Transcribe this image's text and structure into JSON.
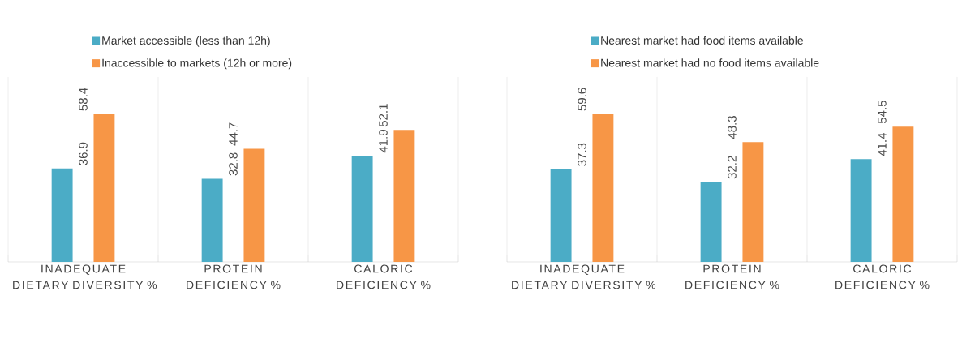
{
  "chart_data": [
    {
      "type": "bar",
      "categories": [
        "INADEQUATE DIETARY DIVERSITY %",
        "PROTEIN DEFICIENCY %",
        "CALORIC DEFICIENCY %"
      ],
      "series": [
        {
          "name": "Market accessible (less than 12h)",
          "color": "#4bacc6",
          "values": [
            36.9,
            32.8,
            41.9
          ]
        },
        {
          "name": "Inaccessible to markets (12h or more)",
          "color": "#f79646",
          "values": [
            58.4,
            44.7,
            52.1
          ]
        }
      ],
      "data_labels": true,
      "grid": "x",
      "legend": "top"
    },
    {
      "type": "bar",
      "categories": [
        "INADEQUATE DIETARY DIVERSITY %",
        "PROTEIN DEFICIENCY %",
        "CALORIC DEFICIENCY %"
      ],
      "series": [
        {
          "name": "Nearest market had food items available",
          "color": "#4bacc6",
          "values": [
            37.3,
            32.2,
            41.4
          ]
        },
        {
          "name": "Nearest market had no food items available",
          "color": "#f79646",
          "values": [
            59.6,
            48.3,
            54.5
          ]
        }
      ],
      "data_labels": true,
      "grid": "x",
      "legend": "top"
    }
  ]
}
